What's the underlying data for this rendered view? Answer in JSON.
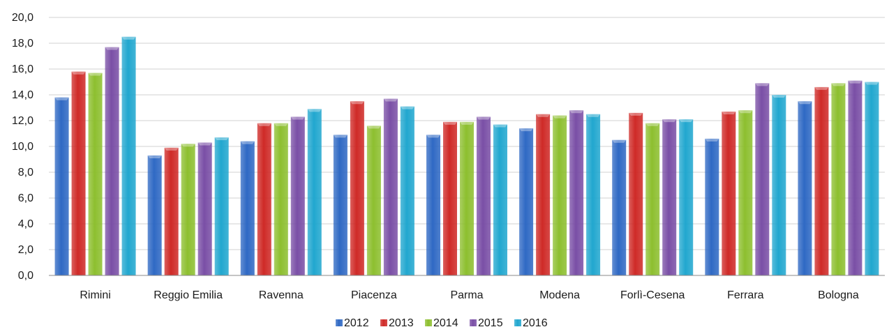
{
  "chart_data": {
    "type": "bar",
    "title": "",
    "xlabel": "",
    "ylabel": "",
    "ylim": [
      0,
      20
    ],
    "ytick_step": 2,
    "ytick_labels": [
      "0,0",
      "2,0",
      "4,0",
      "6,0",
      "8,0",
      "10,0",
      "12,0",
      "14,0",
      "16,0",
      "18,0",
      "20,0"
    ],
    "grid": true,
    "legend_position": "bottom",
    "categories": [
      "Rimini",
      "Reggio Emilia",
      "Ravenna",
      "Piacenza",
      "Parma",
      "Modena",
      "Forlì-Cesena",
      "Ferrara",
      "Bologna"
    ],
    "series": [
      {
        "name": "2012",
        "color": "#2f69c4",
        "values": [
          13.8,
          9.3,
          10.4,
          10.9,
          10.9,
          11.4,
          10.5,
          10.6,
          13.5
        ]
      },
      {
        "name": "2013",
        "color": "#cf2a27",
        "values": [
          15.8,
          9.9,
          11.8,
          13.5,
          11.9,
          12.5,
          12.6,
          12.7,
          14.6
        ]
      },
      {
        "name": "2014",
        "color": "#8dbf2f",
        "values": [
          15.7,
          10.2,
          11.8,
          11.6,
          11.9,
          12.4,
          11.8,
          12.8,
          14.9
        ]
      },
      {
        "name": "2015",
        "color": "#7a4fa6",
        "values": [
          17.7,
          10.3,
          12.3,
          13.7,
          12.3,
          12.8,
          12.1,
          14.9,
          15.1
        ]
      },
      {
        "name": "2016",
        "color": "#21a7cf",
        "values": [
          18.5,
          10.7,
          12.9,
          13.1,
          11.7,
          12.5,
          12.1,
          14.0,
          15.0
        ]
      }
    ]
  }
}
